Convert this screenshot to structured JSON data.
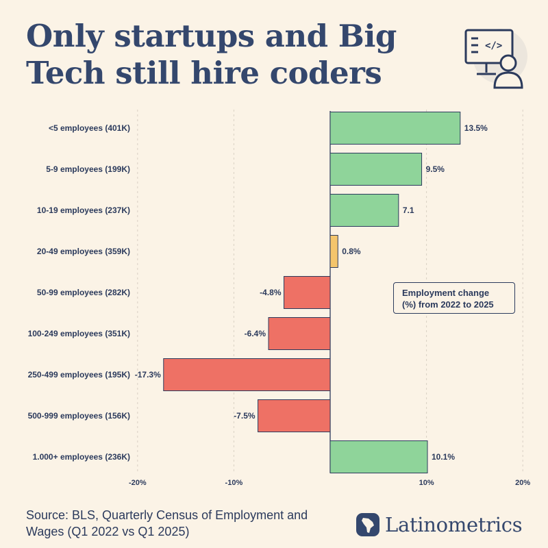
{
  "header": {
    "title_line1": "Only startups and Big",
    "title_line2": "Tech still hire coders",
    "icon": "coder-at-monitor-icon"
  },
  "legend": {
    "line1": "Employment change",
    "line2": "(%) from 2022 to 2025"
  },
  "footer": {
    "source": "Source: BLS, Quarterly Census of Employment and Wages (Q1 2022 vs Q1 2025)",
    "brand": "Latinometrics",
    "brand_icon": "latin-america-map-logo-icon"
  },
  "colors": {
    "positive": "#8fd49a",
    "neutral": "#f4c56c",
    "negative": "#ee7165",
    "stroke": "#2b3a5c",
    "background": "#fbf3e6"
  },
  "chart_data": {
    "type": "bar",
    "orientation": "horizontal",
    "categories": [
      "<5 employees (401K)",
      "5-9 employees (199K)",
      "10-19 employees (237K)",
      "20-49 employees (359K)",
      "50-99 employees (282K)",
      "100-249 employees (351K)",
      "250-499 employees (195K)",
      "500-999 employees (156K)",
      "1.000+ employees (236K)"
    ],
    "values": [
      13.5,
      9.5,
      7.1,
      0.8,
      -4.8,
      -6.4,
      -17.3,
      -7.5,
      10.1
    ],
    "data_labels": [
      "13.5%",
      "9.5%",
      "7.1",
      "0.8%",
      "-4.8%",
      "-6.4%",
      "-17.3%",
      "-7.5%",
      "10.1%"
    ],
    "bar_colors": [
      "positive",
      "positive",
      "positive",
      "neutral",
      "negative",
      "negative",
      "negative",
      "negative",
      "positive"
    ],
    "xlim": [
      -20,
      20
    ],
    "xticks": [
      -20,
      -10,
      10,
      20
    ],
    "xtick_labels": [
      "-20%",
      "-10%",
      "10%",
      "20%"
    ],
    "grid": true,
    "legend_placement": "right-middle"
  }
}
